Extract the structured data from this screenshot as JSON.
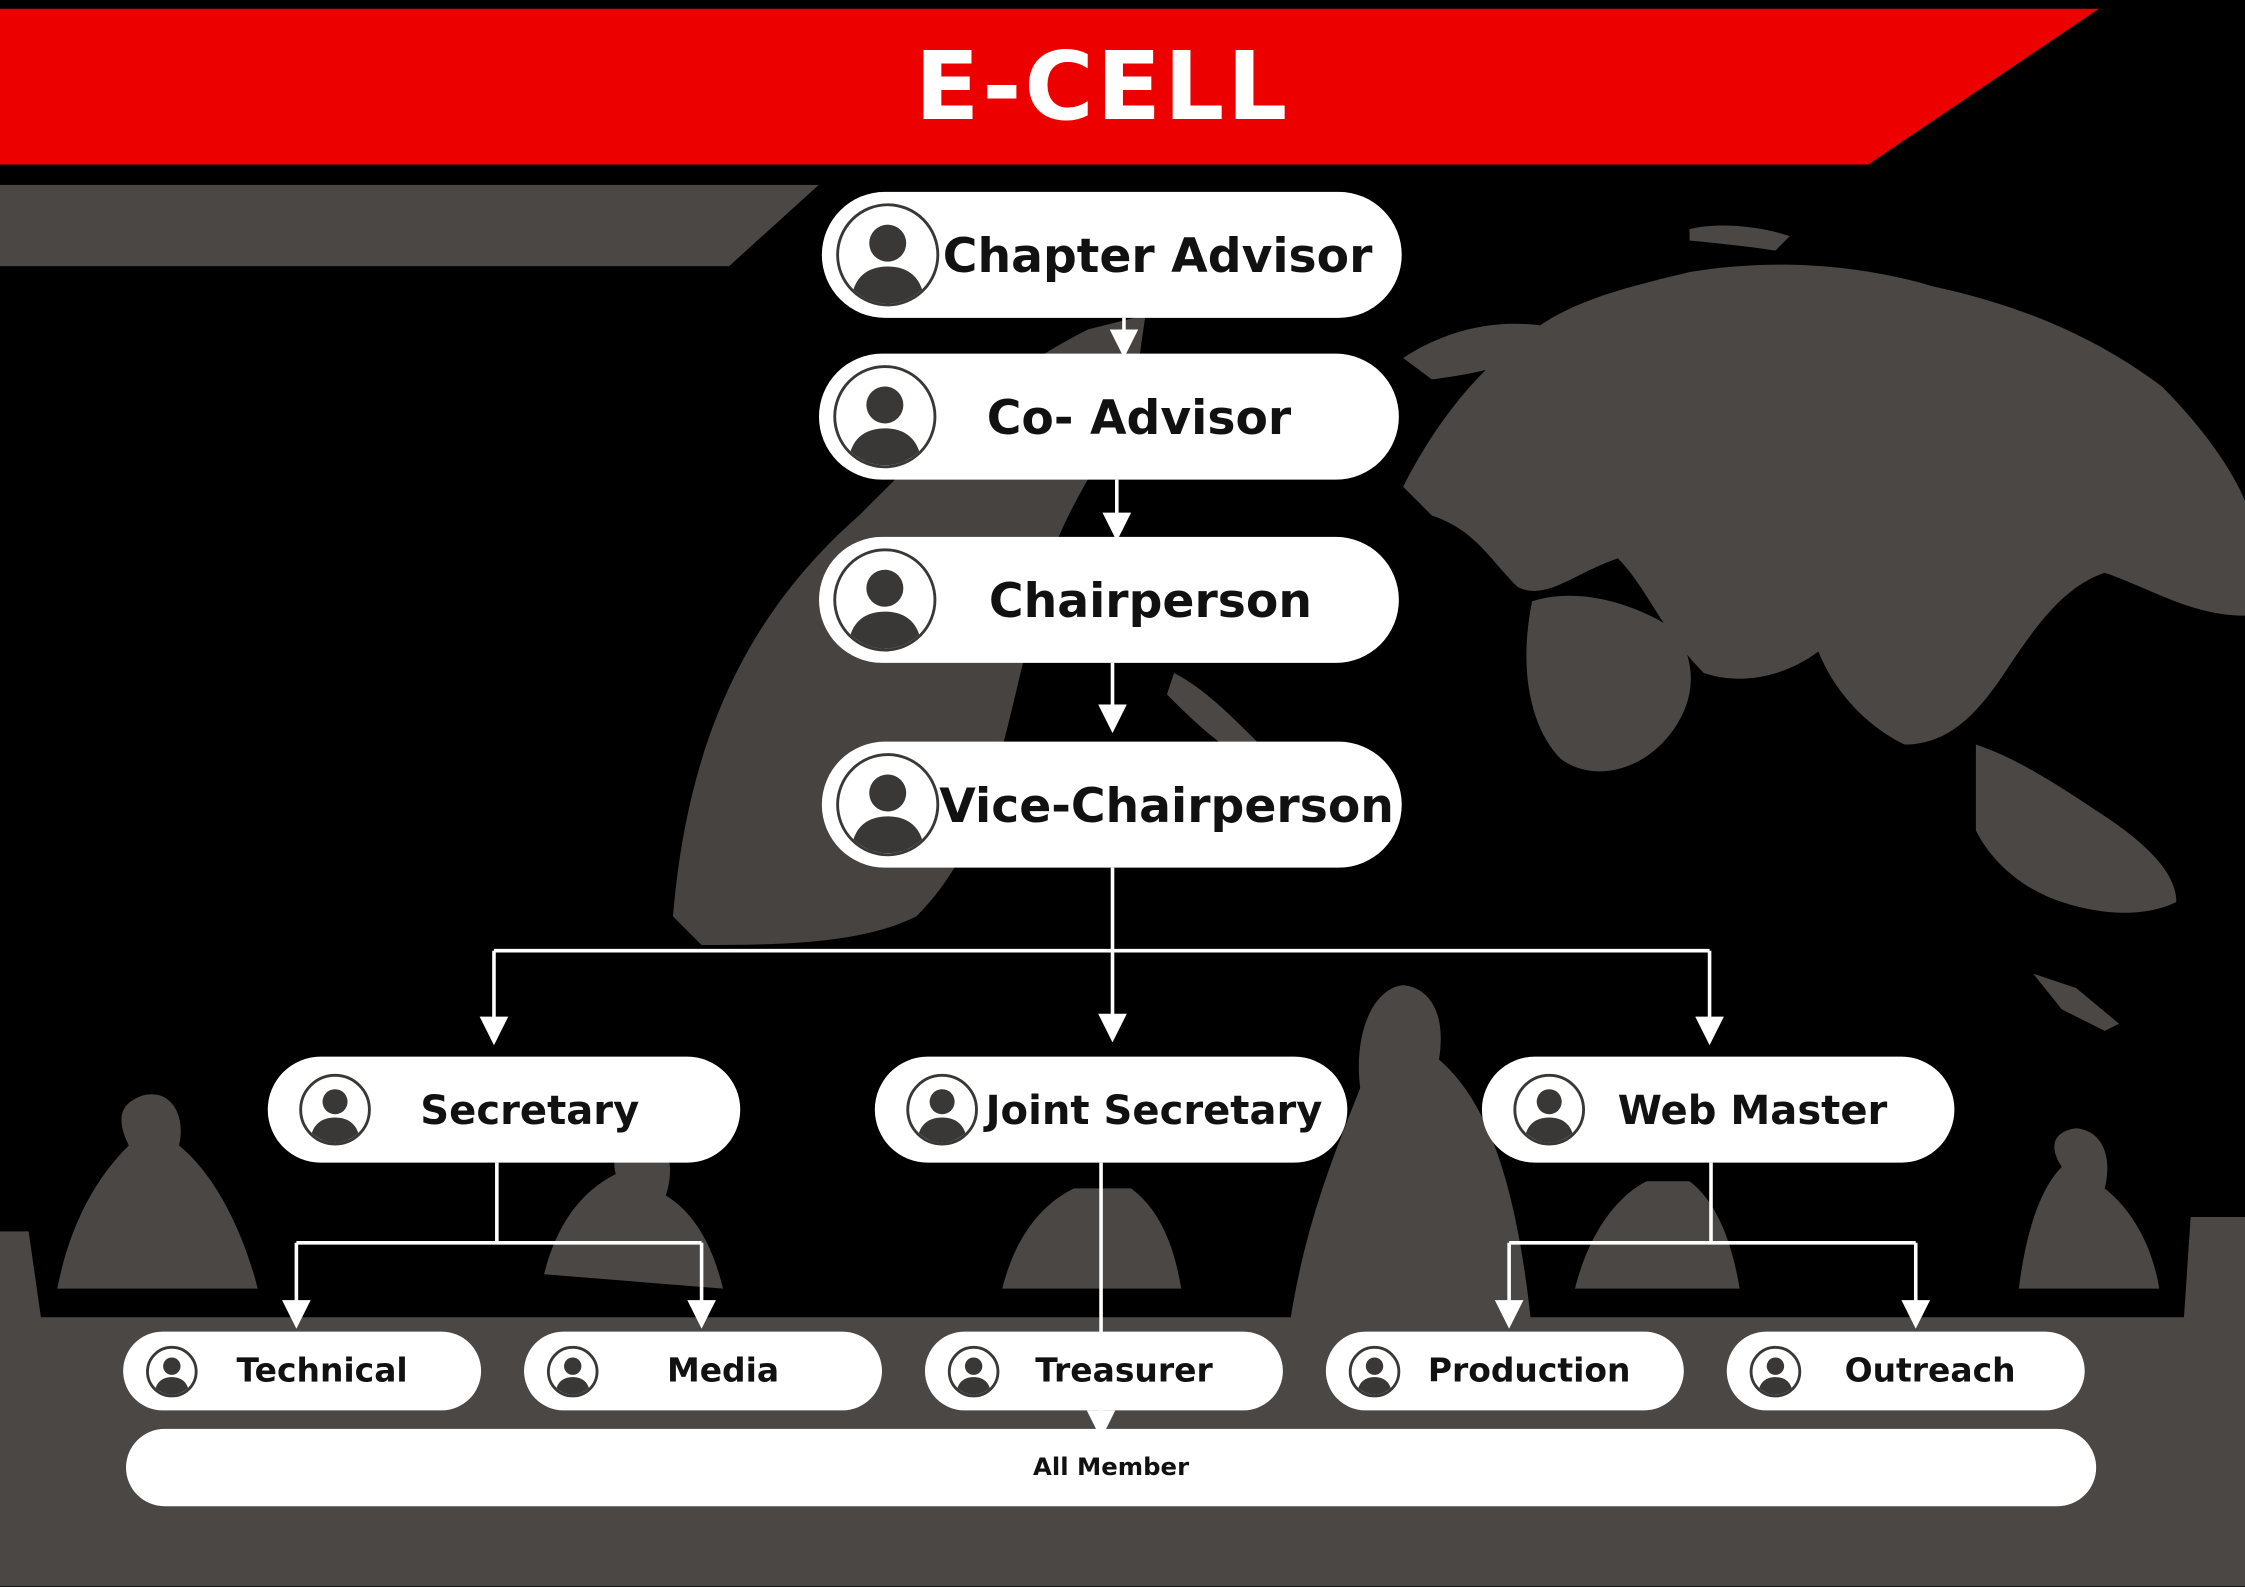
{
  "title": "E-CELL",
  "chart": {
    "levels": [
      {
        "id": "chapter_advisor",
        "label": "Chapter Advisor"
      },
      {
        "id": "co_advisor",
        "label": "Co- Advisor"
      },
      {
        "id": "chairperson",
        "label": "Chairperson"
      },
      {
        "id": "vice_chairperson",
        "label": "Vice-Chairperson"
      }
    ],
    "secretaries": [
      {
        "id": "secretary",
        "label": "Secretary"
      },
      {
        "id": "joint_secretary",
        "label": "Joint Secretary"
      },
      {
        "id": "web_master",
        "label": "Web Master"
      }
    ],
    "teams": [
      {
        "id": "technical",
        "label": "Technical"
      },
      {
        "id": "media",
        "label": "Media"
      },
      {
        "id": "treasurer",
        "label": "Treasurer"
      },
      {
        "id": "production",
        "label": "Production"
      },
      {
        "id": "outreach",
        "label": "Outreach"
      }
    ],
    "all_members": "All Member"
  },
  "colors": {
    "banner": "#ec0000",
    "background": "#000000",
    "silhouette": "#4a4744",
    "node": "#ffffff",
    "avatar": "#3a3836"
  },
  "icons": [
    "person-avatar-icon",
    "globe-map-graphic",
    "meeting-silhouettes-graphic"
  ]
}
